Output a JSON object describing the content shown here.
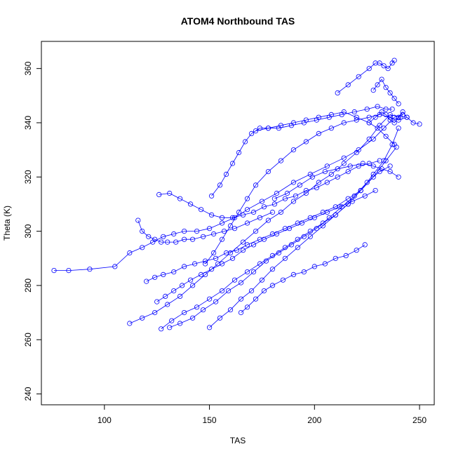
{
  "chart_data": {
    "type": "scatter",
    "title": "ATOM4 Northbound TAS",
    "xlabel": "TAS",
    "ylabel": "Theta (K)",
    "xlim": [
      70,
      257
    ],
    "ylim": [
      236,
      370
    ],
    "xticks": [
      100,
      150,
      200,
      250
    ],
    "yticks": [
      240,
      260,
      280,
      300,
      320,
      340,
      360
    ],
    "grid": false,
    "style": "points connected by lines",
    "color": "#0000ff",
    "series": [
      {
        "x": [
          76,
          83,
          93,
          105,
          112,
          118,
          123,
          128,
          133,
          138,
          144,
          150,
          156,
          162,
          168,
          175,
          182,
          190,
          198,
          206,
          214,
          221,
          228,
          233,
          238,
          242
        ],
        "y": [
          285.5,
          285.5,
          286,
          287,
          292,
          294,
          296,
          298,
          299,
          300,
          300,
          301,
          303,
          305,
          308,
          311,
          314,
          318,
          321,
          324,
          327,
          330,
          334,
          338,
          342,
          343
        ]
      },
      {
        "x": [
          112,
          118,
          124,
          130,
          136,
          142,
          148,
          154,
          160,
          166,
          172,
          178,
          184,
          190,
          196,
          202,
          208,
          214,
          220,
          226,
          231,
          236,
          241
        ],
        "y": [
          266,
          268,
          270,
          273,
          276,
          280,
          284,
          288,
          292,
          296,
          300,
          304,
          307,
          311,
          314,
          318,
          321,
          325,
          329,
          334,
          339,
          343,
          342
        ]
      },
      {
        "x": [
          127,
          132,
          138,
          144,
          150,
          156,
          162,
          168,
          174,
          180,
          186,
          192,
          198,
          204,
          210,
          216,
          222,
          228,
          234,
          239
        ],
        "y": [
          264,
          267,
          270,
          272,
          275,
          278,
          282,
          285,
          288,
          291,
          294,
          297,
          300,
          303,
          306,
          310,
          315,
          320,
          326,
          331
        ]
      },
      {
        "x": [
          131,
          136,
          142,
          147,
          153,
          159,
          165,
          171,
          177,
          183,
          189,
          195,
          201,
          207,
          213,
          219,
          225,
          231,
          236
        ],
        "y": [
          264.5,
          266,
          268,
          271,
          274,
          278,
          281,
          285,
          289,
          292,
          295,
          298,
          301,
          305,
          309,
          313,
          318,
          322,
          324
        ]
      },
      {
        "x": [
          150,
          155,
          160,
          165,
          170,
          175,
          180,
          186,
          192,
          198,
          204,
          210,
          216,
          222,
          228,
          233,
          237,
          240
        ],
        "y": [
          264.5,
          268,
          271,
          275,
          278,
          282,
          286,
          290,
          294,
          298,
          302,
          306,
          310,
          315,
          321,
          326,
          332,
          338
        ]
      },
      {
        "x": [
          148,
          152,
          156,
          160,
          164,
          168,
          172,
          178,
          184,
          190,
          196,
          202,
          208,
          214,
          220,
          226,
          231,
          236,
          240,
          244
        ],
        "y": [
          288,
          292,
          297,
          302,
          307,
          312,
          317,
          322,
          326,
          330,
          333,
          336,
          338,
          340,
          341,
          342,
          343,
          342,
          341,
          342
        ]
      },
      {
        "x": [
          151,
          155,
          158,
          161,
          164,
          167,
          170,
          174,
          178,
          183,
          189,
          195,
          201,
          207,
          213,
          219,
          225,
          230,
          234,
          237
        ],
        "y": [
          313,
          317,
          321,
          325,
          329,
          333,
          336,
          338,
          338,
          338,
          339,
          340,
          341,
          342,
          343,
          344,
          345,
          346,
          345,
          345
        ]
      },
      {
        "x": [
          165,
          168,
          172,
          176,
          180,
          185,
          190,
          195,
          200,
          205,
          210,
          215,
          220,
          224
        ],
        "y": [
          270,
          272,
          275,
          278,
          280,
          282,
          284,
          285,
          287,
          288,
          290,
          291,
          293,
          295
        ]
      },
      {
        "x": [
          116,
          118,
          121,
          124,
          127,
          130,
          134,
          138,
          142,
          147,
          152,
          157,
          162,
          168,
          174,
          180
        ],
        "y": [
          304,
          300,
          298,
          297,
          296,
          296,
          296,
          297,
          297,
          298,
          299,
          300,
          301,
          303,
          305,
          307
        ]
      },
      {
        "x": [
          126,
          131,
          136,
          141,
          146,
          151,
          156,
          161,
          166,
          171,
          176,
          181,
          186,
          191,
          196,
          201,
          206,
          211,
          216,
          221,
          226,
          231
        ],
        "y": [
          313.5,
          314,
          312,
          310,
          308,
          306,
          305,
          305,
          306,
          307,
          309,
          310,
          312,
          313,
          315,
          316,
          318,
          320,
          322,
          324,
          325,
          326
        ]
      },
      {
        "x": [
          120,
          124,
          128,
          133,
          138,
          143,
          148,
          153,
          158,
          163,
          168,
          174,
          180,
          186,
          192,
          198,
          204,
          210,
          216,
          222
        ],
        "y": [
          281.5,
          283,
          284,
          285,
          287,
          288,
          289,
          290,
          292,
          293,
          295,
          297,
          299,
          301,
          303,
          305,
          307,
          309,
          312,
          315
        ]
      },
      {
        "x": [
          125,
          129,
          133,
          137,
          141,
          146,
          151,
          156,
          161,
          166,
          171,
          176,
          182,
          188,
          194,
          200,
          206,
          212,
          218,
          224,
          229
        ],
        "y": [
          274,
          276,
          278,
          280,
          282,
          284,
          286,
          288,
          290,
          293,
          295,
          297,
          299,
          301,
          303,
          305,
          307,
          309,
          311,
          313,
          315
        ]
      },
      {
        "x": [
          211,
          216,
          221,
          226,
          229,
          231,
          233,
          235,
          237,
          238
        ],
        "y": [
          351,
          354,
          357,
          360,
          362,
          362,
          361,
          360,
          362,
          363
        ]
      },
      {
        "x": [
          226,
          229,
          232,
          234,
          236,
          238,
          240,
          242,
          244,
          247,
          250
        ],
        "y": [
          340,
          342,
          344,
          343,
          341,
          340,
          342,
          344,
          342,
          340,
          339.5
        ]
      },
      {
        "x": [
          228,
          230,
          232,
          234,
          236,
          238,
          240
        ],
        "y": [
          352,
          354,
          356,
          353,
          351,
          349,
          347
        ]
      },
      {
        "x": [
          172,
          178,
          184,
          190,
          196,
          202,
          208,
          214,
          220,
          226,
          230,
          234,
          238
        ],
        "y": [
          337,
          338,
          339,
          340,
          341,
          342,
          343,
          344,
          342,
          340,
          338,
          335,
          332
        ]
      },
      {
        "x": [
          181,
          187,
          193,
          199,
          205,
          211,
          217,
          223,
          228,
          232,
          236,
          240
        ],
        "y": [
          312,
          314,
          317,
          320,
          322,
          323,
          324,
          325,
          324,
          323,
          322,
          320
        ]
      }
    ]
  }
}
